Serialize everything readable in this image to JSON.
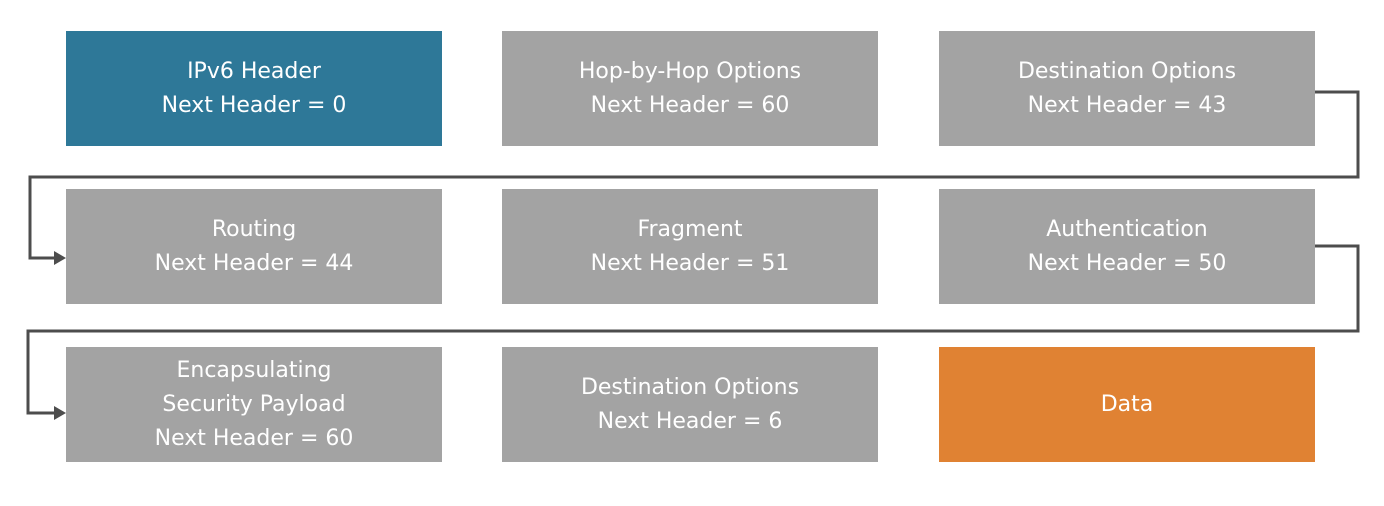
{
  "colors": {
    "ipv6_header": "#2e7898",
    "extension_header": "#a3a3a3",
    "data": "#e08233",
    "connector": "#4d4d4d",
    "text": "#ffffff"
  },
  "boxes": [
    {
      "lines": [
        "IPv6 Header",
        "Next Header = 0"
      ]
    },
    {
      "lines": [
        "Hop-by-Hop Options",
        "Next Header = 60"
      ]
    },
    {
      "lines": [
        "Destination Options",
        "Next Header = 43"
      ]
    },
    {
      "lines": [
        "Routing",
        "Next Header = 44"
      ]
    },
    {
      "lines": [
        "Fragment",
        "Next Header = 51"
      ]
    },
    {
      "lines": [
        "Authentication",
        "Next Header = 50"
      ]
    },
    {
      "lines": [
        "Encapsulating",
        "Security Payload",
        "Next Header = 60"
      ]
    },
    {
      "lines": [
        "Destination Options",
        "Next Header = 6"
      ]
    },
    {
      "lines": [
        "Data"
      ]
    }
  ]
}
